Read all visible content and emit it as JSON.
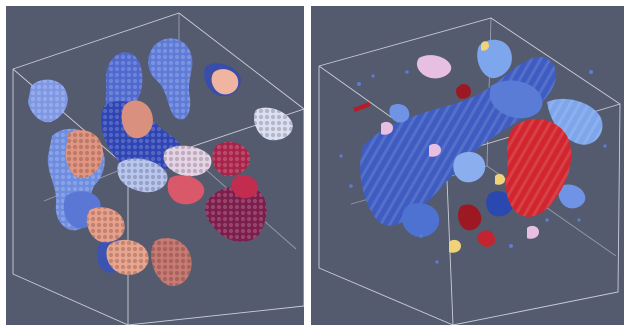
{
  "figure": {
    "description_free": true,
    "panels": [
      {
        "id": "left",
        "background": "#555b6e",
        "wireframe_color": "#d7d9e3",
        "palette": {
          "blue_light": "#8aa3e8",
          "blue_mid": "#5a74d6",
          "blue_dark": "#2f45b4",
          "navy": "#243085",
          "salmon": "#e49a86",
          "peach": "#f0b5a1",
          "pink_light": "#e6d4e6",
          "crimson": "#b2264a",
          "maroon": "#7c1d4c"
        }
      },
      {
        "id": "right",
        "background": "#555b6e",
        "wireframe_color": "#d7d9e3",
        "palette": {
          "blue_light": "#7ea6ec",
          "blue_mid": "#4e72d2",
          "blue_dark": "#2b48b0",
          "red": "#d2262f",
          "red_dark": "#9c1822",
          "pink": "#e7bfe0",
          "yellow": "#f0d27a"
        }
      }
    ]
  }
}
